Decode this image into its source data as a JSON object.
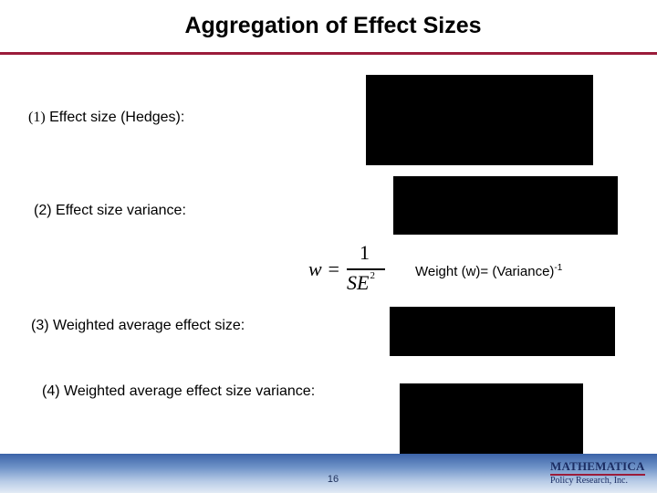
{
  "title": "Aggregation of Effect Sizes",
  "items": [
    {
      "number": "(1)",
      "text": "Effect size (Hedges):"
    },
    {
      "number": "(2)",
      "text": "Effect size variance:"
    },
    {
      "number": "(3)",
      "text": "Weighted average effect size:"
    },
    {
      "number": "(4)",
      "text": "Weighted average effect size variance:"
    }
  ],
  "formula": {
    "lhs": "w =",
    "numerator": "1",
    "denominator": "SE",
    "exponent": "2"
  },
  "weight_label": {
    "text": "Weight (w)= (Variance)",
    "superscript": "-1"
  },
  "footer": {
    "page_number": "16",
    "logo_top": "MATHEMATICA",
    "logo_bottom": "Policy Research, Inc."
  },
  "colors": {
    "title_rule": "#9b1c3a",
    "footer_band": "#3b63a8",
    "logo_text": "#1b2d63"
  }
}
